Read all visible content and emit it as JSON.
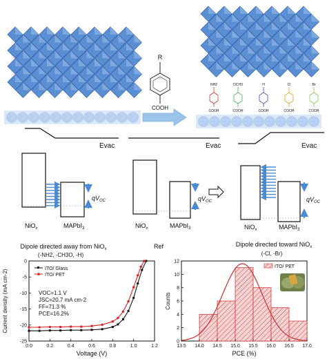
{
  "top_panel": {
    "evac_label": "Evac",
    "molecule": {
      "r_group": "R",
      "acid_group": "COOH"
    },
    "sam_molecules": [
      {
        "substituent": "NH2",
        "acid": "COOH",
        "color": "#d9302c"
      },
      {
        "substituent": "OCH3",
        "acid": "COOH",
        "color": "#4caf50"
      },
      {
        "substituent": "H",
        "acid": "COOH",
        "color": "#3f51b5"
      },
      {
        "substituent": "Cl",
        "acid": "COOH",
        "color": "#e0a020"
      },
      {
        "substituent": "Br",
        "acid": "COOH",
        "color": "#8bc34a"
      }
    ]
  },
  "middle_panel": {
    "nio_label": "NiO",
    "nio_sub": "x",
    "mapbi_label": "MAPbI",
    "mapbi_sub": "3",
    "voc_q": "qV",
    "voc_sub": "OC",
    "caption_left": "Dipole directed away from NiO",
    "caption_left_sub": "x",
    "caption_left_groups": "(-NH2, -CH3O, -H)",
    "caption_center": "Ref",
    "caption_right": "Dipole directed toward NiO",
    "caption_right_sub": "x",
    "caption_right_groups": "(-Cl, -Br)"
  },
  "jv_annotations": {
    "voc": "VOC=1.1 V",
    "jsc": "JSC=20.7 mA cm-2",
    "ff": "FF=71.3 %",
    "pce": "PCE=16.2%"
  },
  "colors": {
    "octahedra": "#5b8fd4",
    "substrate": "#b8cff0",
    "glass_series": "#111111",
    "pet_series": "#e02020",
    "hist_fill": "#f4c7c7",
    "hist_edge": "#d23a3a",
    "arrows": "#4a8ad4"
  },
  "chart_data": [
    {
      "type": "line",
      "xlabel": "Voltage (V)",
      "ylabel": "Current density (mA cm-2)",
      "xlim": [
        0.0,
        1.2
      ],
      "ylim": [
        -25,
        0
      ],
      "xticks": [
        "0.0",
        "0.2",
        "0.4",
        "0.6",
        "0.8",
        "1.0",
        "1.2"
      ],
      "yticks": [
        "0",
        "-5",
        "-10",
        "-15",
        "-20",
        "-25"
      ],
      "legend": "top-left",
      "series": [
        {
          "name": "ITO/ Glass",
          "x": [
            0.0,
            0.1,
            0.2,
            0.3,
            0.4,
            0.5,
            0.6,
            0.7,
            0.8,
            0.85,
            0.9,
            0.95,
            1.0,
            1.04,
            1.08,
            1.12
          ],
          "y": [
            -21.8,
            -21.8,
            -21.7,
            -21.7,
            -21.6,
            -21.6,
            -21.5,
            -21.3,
            -20.6,
            -19.8,
            -18.2,
            -15.6,
            -11.5,
            -7.0,
            -2.8,
            0.0
          ]
        },
        {
          "name": "ITO/ PET",
          "x": [
            0.0,
            0.1,
            0.2,
            0.3,
            0.4,
            0.5,
            0.6,
            0.7,
            0.8,
            0.85,
            0.9,
            0.95,
            1.0,
            1.04,
            1.07,
            1.1
          ],
          "y": [
            -20.7,
            -20.7,
            -20.6,
            -20.6,
            -20.5,
            -20.5,
            -20.3,
            -19.9,
            -18.9,
            -17.8,
            -15.8,
            -12.6,
            -8.2,
            -4.5,
            -1.8,
            0.0
          ]
        }
      ]
    },
    {
      "type": "bar",
      "xlabel": "PCE (%)",
      "ylabel": "Counts",
      "legend_label": "ITO/ PET",
      "xlim": [
        13.5,
        17.0
      ],
      "ylim": [
        0,
        12
      ],
      "xticks": [
        "13.5",
        "14.0",
        "14.5",
        "15.0",
        "15.5",
        "16.0",
        "16.5",
        "17.0"
      ],
      "yticks": [
        "0",
        "2",
        "4",
        "6",
        "8",
        "10",
        "12"
      ],
      "bins": [
        {
          "start": 14.0,
          "end": 14.5,
          "count": 4
        },
        {
          "start": 14.5,
          "end": 15.0,
          "count": 6
        },
        {
          "start": 15.0,
          "end": 15.5,
          "count": 11
        },
        {
          "start": 15.5,
          "end": 16.0,
          "count": 8
        },
        {
          "start": 16.0,
          "end": 16.5,
          "count": 5
        },
        {
          "start": 16.5,
          "end": 17.0,
          "count": 3
        }
      ],
      "fit_curve": {
        "mean": 15.2,
        "sigma": 0.55,
        "peak": 11.6
      }
    }
  ]
}
